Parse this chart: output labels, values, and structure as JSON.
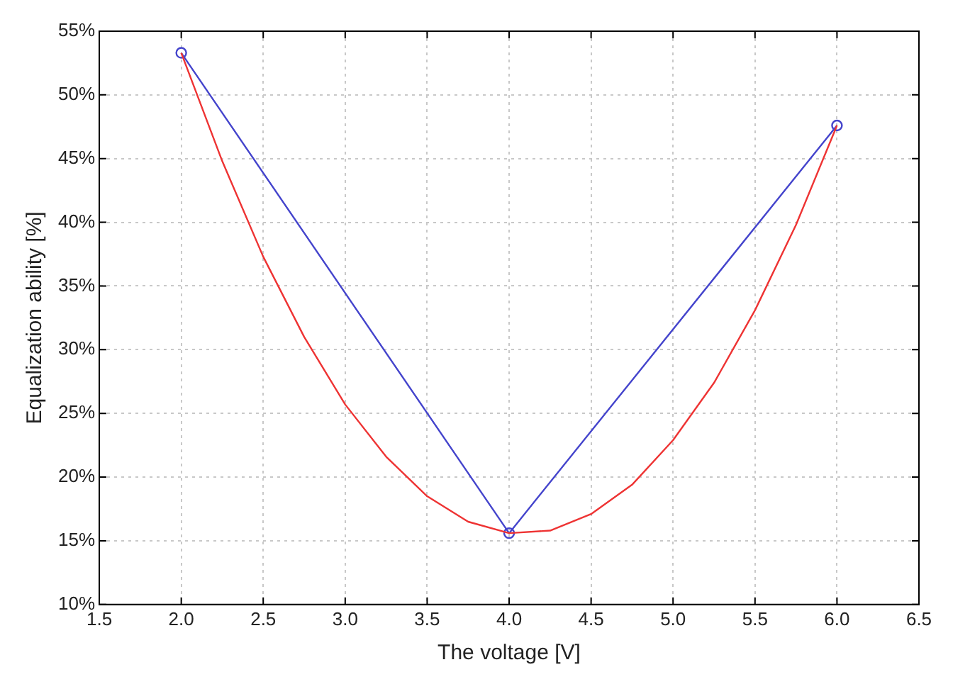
{
  "chart_data": {
    "type": "line",
    "xlabel": "The voltage [V]",
    "ylabel": "Equalization ability [%]",
    "xlim": [
      1.5,
      6.5
    ],
    "xticks": [
      {
        "value": 1.5,
        "label": "1.5"
      },
      {
        "value": 2,
        "label": "2.0"
      },
      {
        "value": 2.5,
        "label": "2.5"
      },
      {
        "value": 3,
        "label": "3.0"
      },
      {
        "value": 3.5,
        "label": "3.5"
      },
      {
        "value": 4,
        "label": "4.0"
      },
      {
        "value": 4.5,
        "label": "4.5"
      },
      {
        "value": 5,
        "label": "5.0"
      },
      {
        "value": 5.5,
        "label": "5.5"
      },
      {
        "value": 6,
        "label": "6.0"
      },
      {
        "value": 6.5,
        "label": "6.5"
      }
    ],
    "ylim": [
      10,
      55
    ],
    "yticks": [
      {
        "value": 10,
        "label": "10%"
      },
      {
        "value": 15,
        "label": "15%"
      },
      {
        "value": 20,
        "label": "20%"
      },
      {
        "value": 25,
        "label": "25%"
      },
      {
        "value": 30,
        "label": "30%"
      },
      {
        "value": 35,
        "label": "35%"
      },
      {
        "value": 40,
        "label": "40%"
      },
      {
        "value": 45,
        "label": "45%"
      },
      {
        "value": 50,
        "label": "50%"
      },
      {
        "value": 55,
        "label": "55%"
      }
    ],
    "grid": true,
    "legend": false,
    "line_style": "solid",
    "series": [
      {
        "color": "#ee3333",
        "marker": "none",
        "x": [
          2,
          2.25,
          2.5,
          2.75,
          3,
          3.25,
          3.5,
          3.75,
          4,
          4.25,
          4.5,
          4.75,
          5,
          5.25,
          5.5,
          5.75,
          6
        ],
        "values": [
          53.3,
          44.8,
          37.3,
          31,
          25.7,
          21.6,
          18.5,
          16.5,
          15.6,
          15.8,
          17.1,
          19.4,
          22.9,
          27.4,
          33.1,
          39.8,
          47.6
        ]
      },
      {
        "color": "#4444cc",
        "marker": "circle",
        "x": [
          2,
          4,
          6
        ],
        "values": [
          53.3,
          15.6,
          47.6
        ]
      }
    ]
  }
}
